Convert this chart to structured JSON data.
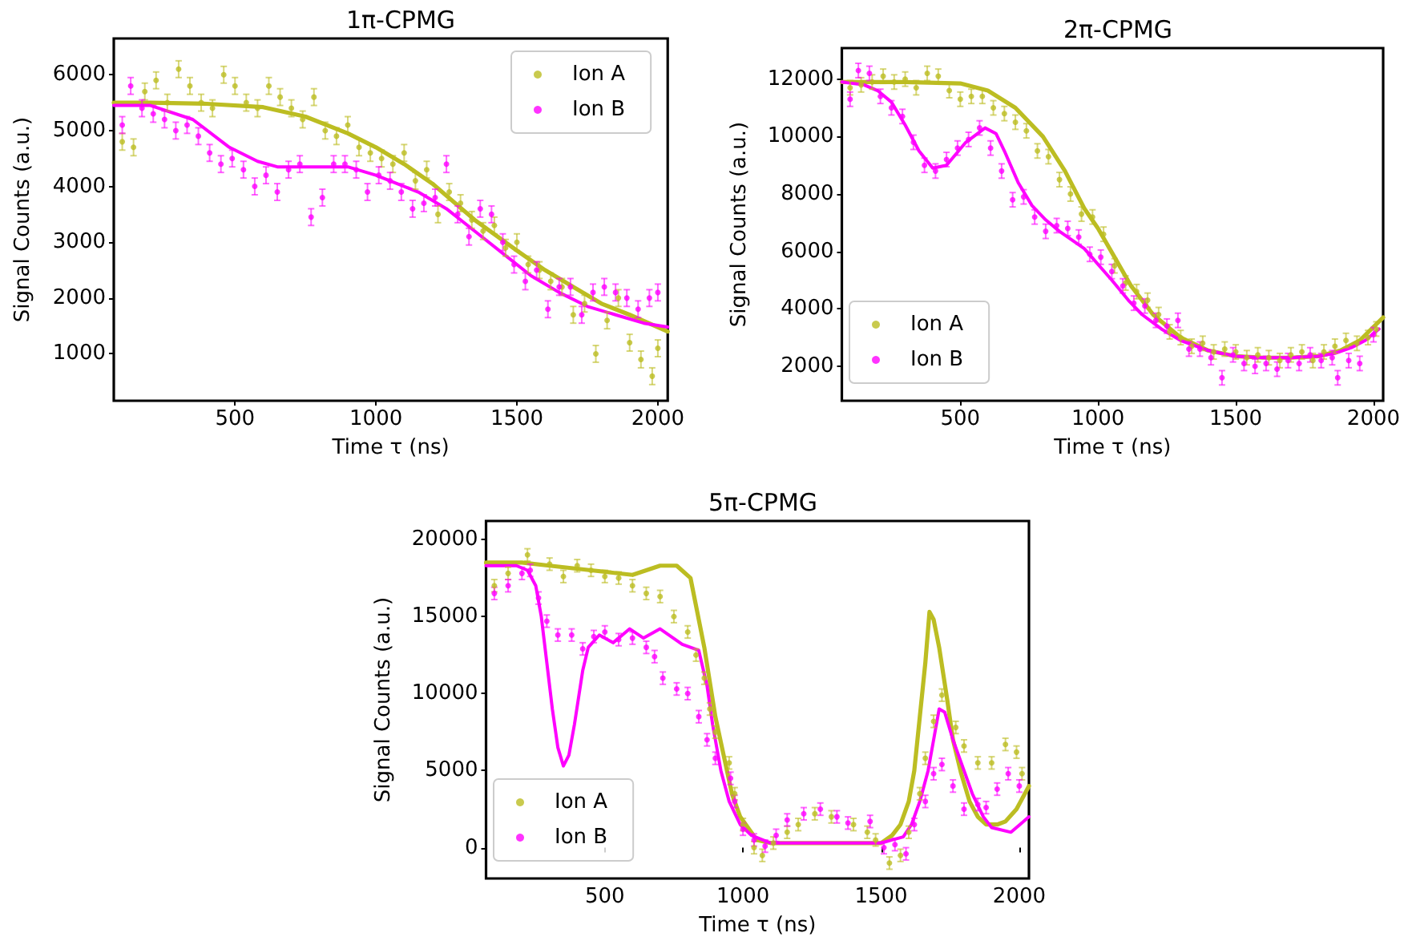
{
  "chart_data": [
    {
      "type": "scatter",
      "title": "1π-CPMG",
      "xlabel": "Time τ (ns)",
      "ylabel": "Signal Counts (a.u.)",
      "xlim": [
        70,
        2035
      ],
      "ylim": [
        160,
        6650
      ],
      "xticks": [
        500,
        1000,
        1500,
        2000
      ],
      "yticks": [
        1000,
        2000,
        3000,
        4000,
        5000,
        6000
      ],
      "grid": false,
      "legend": "top right",
      "series": [
        {
          "name": "Ion A",
          "marker": "circle",
          "color": "#bcbd22",
          "x": [
            100,
            140,
            180,
            220,
            260,
            300,
            340,
            380,
            420,
            460,
            500,
            540,
            580,
            620,
            660,
            700,
            740,
            780,
            820,
            860,
            900,
            940,
            980,
            1020,
            1060,
            1100,
            1140,
            1180,
            1220,
            1260,
            1300,
            1340,
            1380,
            1420,
            1460,
            1500,
            1540,
            1580,
            1620,
            1660,
            1700,
            1740,
            1780,
            1820,
            1860,
            1900,
            1940,
            1980,
            2000
          ],
          "values": [
            4800,
            4700,
            5700,
            5900,
            5500,
            6100,
            5800,
            5500,
            5400,
            6000,
            5800,
            5500,
            5400,
            5800,
            5600,
            5400,
            5200,
            5600,
            5000,
            4900,
            5100,
            4700,
            4600,
            4500,
            4400,
            4600,
            4100,
            4300,
            3500,
            3900,
            3700,
            3400,
            3200,
            3300,
            2900,
            3000,
            2600,
            2500,
            2300,
            2200,
            1700,
            1900,
            1000,
            1600,
            2000,
            1200,
            900,
            600,
            1100
          ],
          "errors": [
            150,
            150,
            150,
            150,
            150,
            150,
            150,
            150,
            150,
            150,
            150,
            150,
            150,
            150,
            150,
            150,
            150,
            150,
            150,
            150,
            150,
            150,
            150,
            150,
            150,
            150,
            150,
            150,
            150,
            150,
            150,
            150,
            150,
            150,
            150,
            150,
            150,
            150,
            150,
            150,
            150,
            150,
            150,
            150,
            150,
            150,
            150,
            150,
            150
          ]
        },
        {
          "name": "Ion B",
          "marker": "circle",
          "color": "#ff00ff",
          "x": [
            100,
            130,
            170,
            210,
            250,
            290,
            330,
            370,
            410,
            450,
            490,
            530,
            570,
            610,
            650,
            690,
            730,
            770,
            810,
            850,
            890,
            930,
            970,
            1010,
            1050,
            1090,
            1130,
            1170,
            1210,
            1250,
            1290,
            1330,
            1370,
            1410,
            1450,
            1490,
            1530,
            1570,
            1610,
            1650,
            1690,
            1730,
            1770,
            1810,
            1850,
            1890,
            1930,
            1970,
            2000
          ],
          "values": [
            5100,
            5800,
            5400,
            5300,
            5200,
            5000,
            5100,
            4900,
            4600,
            4400,
            4500,
            4300,
            4000,
            4200,
            3900,
            4300,
            4400,
            3450,
            3800,
            4400,
            4400,
            4300,
            3900,
            4200,
            4100,
            3900,
            3600,
            3700,
            3800,
            4400,
            3500,
            3100,
            3600,
            3500,
            3000,
            2600,
            2300,
            2500,
            1800,
            2200,
            2200,
            1700,
            2100,
            2200,
            2100,
            2000,
            1800,
            2000,
            2100
          ],
          "errors": [
            150,
            150,
            150,
            150,
            150,
            150,
            150,
            150,
            150,
            150,
            150,
            150,
            150,
            150,
            150,
            150,
            150,
            150,
            150,
            150,
            150,
            150,
            150,
            150,
            150,
            150,
            150,
            150,
            150,
            150,
            150,
            150,
            150,
            150,
            150,
            150,
            150,
            150,
            150,
            150,
            150,
            150,
            150,
            150,
            150,
            150,
            150,
            150,
            150
          ]
        },
        {
          "type": "line",
          "line_style": "solid",
          "color": "#bcbd22",
          "x": [
            70,
            200,
            400,
            600,
            750,
            900,
            1000,
            1100,
            1200,
            1350,
            1500,
            1600,
            1700,
            1800,
            1900,
            2035
          ],
          "values": [
            5500,
            5500,
            5480,
            5420,
            5250,
            4950,
            4700,
            4400,
            4050,
            3400,
            2850,
            2500,
            2200,
            1900,
            1700,
            1400
          ]
        },
        {
          "type": "line",
          "line_style": "solid",
          "color": "#ff00ff",
          "x": [
            70,
            200,
            350,
            480,
            580,
            650,
            800,
            900,
            1000,
            1050,
            1150,
            1250,
            1350,
            1450,
            1550,
            1650,
            1750,
            1850,
            1950,
            2035
          ],
          "values": [
            5450,
            5450,
            5200,
            4700,
            4450,
            4350,
            4350,
            4350,
            4200,
            4100,
            3900,
            3600,
            3200,
            2800,
            2400,
            2100,
            1850,
            1700,
            1550,
            1480
          ]
        }
      ]
    },
    {
      "type": "scatter",
      "title": "2π-CPMG",
      "xlabel": "Time τ (ns)",
      "ylabel": "Signal Counts (a.u.)",
      "xlim": [
        70,
        2035
      ],
      "ylim": [
        800,
        13080
      ],
      "xticks": [
        500,
        1000,
        1500,
        2000
      ],
      "yticks": [
        2000,
        4000,
        6000,
        8000,
        10000,
        12000
      ],
      "grid": false,
      "legend": "bottom left",
      "series": [
        {
          "name": "Ion A",
          "marker": "circle",
          "color": "#bcbd22",
          "x": [
            100,
            140,
            180,
            220,
            260,
            300,
            340,
            380,
            420,
            460,
            500,
            540,
            580,
            620,
            660,
            700,
            740,
            780,
            820,
            860,
            900,
            940,
            980,
            1020,
            1060,
            1100,
            1140,
            1180,
            1220,
            1260,
            1300,
            1340,
            1380,
            1420,
            1460,
            1500,
            1540,
            1580,
            1620,
            1660,
            1700,
            1740,
            1780,
            1820,
            1860,
            1900,
            1940,
            1980,
            2010
          ],
          "values": [
            11700,
            11800,
            11900,
            12100,
            11900,
            12000,
            11700,
            12200,
            12100,
            11600,
            11300,
            11400,
            11400,
            11000,
            10800,
            10500,
            10200,
            9500,
            9300,
            8500,
            8000,
            7300,
            7200,
            6600,
            5500,
            4900,
            4600,
            4300,
            3800,
            3200,
            3000,
            2700,
            2800,
            2500,
            2600,
            2500,
            2300,
            2400,
            2300,
            2200,
            2400,
            2500,
            2200,
            2500,
            2700,
            2900,
            2800,
            3000,
            3300
          ],
          "errors": [
            250,
            250,
            250,
            250,
            250,
            250,
            250,
            250,
            250,
            250,
            250,
            250,
            250,
            250,
            250,
            250,
            250,
            250,
            250,
            250,
            250,
            250,
            250,
            250,
            250,
            250,
            250,
            250,
            250,
            250,
            250,
            250,
            250,
            250,
            250,
            250,
            250,
            250,
            250,
            250,
            250,
            250,
            250,
            250,
            250,
            250,
            250,
            250,
            250
          ]
        },
        {
          "name": "Ion B",
          "marker": "circle",
          "color": "#ff00ff",
          "x": [
            100,
            130,
            170,
            210,
            250,
            290,
            330,
            370,
            410,
            450,
            490,
            530,
            570,
            610,
            650,
            690,
            730,
            770,
            810,
            850,
            890,
            930,
            970,
            1010,
            1050,
            1090,
            1130,
            1170,
            1210,
            1250,
            1290,
            1330,
            1370,
            1410,
            1450,
            1490,
            1530,
            1570,
            1610,
            1650,
            1690,
            1730,
            1770,
            1810,
            1850,
            1870,
            1910,
            1950,
            2000
          ],
          "values": [
            11300,
            12300,
            12200,
            11400,
            11000,
            10700,
            9800,
            9000,
            8800,
            9200,
            9600,
            9900,
            10300,
            9600,
            8800,
            7800,
            7900,
            7200,
            6700,
            6900,
            6800,
            6500,
            5900,
            5800,
            5300,
            4800,
            4200,
            4100,
            3600,
            3400,
            3600,
            2600,
            2600,
            2300,
            1600,
            2400,
            2100,
            2000,
            2100,
            1900,
            2200,
            2100,
            2400,
            2200,
            2300,
            1600,
            2200,
            2100,
            3100
          ],
          "errors": [
            250,
            250,
            250,
            250,
            250,
            250,
            250,
            250,
            250,
            250,
            250,
            250,
            250,
            250,
            250,
            250,
            250,
            250,
            250,
            250,
            250,
            250,
            250,
            250,
            250,
            250,
            250,
            250,
            250,
            250,
            250,
            250,
            250,
            250,
            250,
            250,
            250,
            250,
            250,
            250,
            250,
            250,
            250,
            250,
            250,
            250,
            250,
            250,
            250
          ]
        },
        {
          "type": "line",
          "line_style": "solid",
          "color": "#bcbd22",
          "x": [
            70,
            300,
            500,
            600,
            700,
            800,
            880,
            950,
            1000,
            1060,
            1120,
            1200,
            1300,
            1400,
            1500,
            1600,
            1700,
            1800,
            1880,
            1950,
            2035
          ],
          "values": [
            11900,
            11900,
            11850,
            11600,
            11000,
            10000,
            8800,
            7500,
            6800,
            5800,
            4800,
            3800,
            3000,
            2550,
            2350,
            2300,
            2300,
            2350,
            2550,
            2900,
            3700
          ]
        },
        {
          "type": "line",
          "line_style": "solid",
          "color": "#ff00ff",
          "x": [
            70,
            150,
            200,
            250,
            300,
            350,
            400,
            450,
            520,
            590,
            630,
            660,
            710,
            760,
            810,
            860,
            950,
            1050,
            1110,
            1160,
            1230,
            1300,
            1400,
            1500,
            1600,
            1700,
            1800,
            1860,
            1920,
            1970,
            2020
          ],
          "values": [
            11900,
            11800,
            11600,
            11200,
            10400,
            9500,
            8900,
            9000,
            9800,
            10300,
            10100,
            9500,
            8400,
            7600,
            7100,
            6700,
            6100,
            5000,
            4300,
            3800,
            3300,
            2900,
            2550,
            2350,
            2300,
            2300,
            2350,
            2450,
            2650,
            2900,
            3300
          ]
        }
      ]
    },
    {
      "type": "scatter",
      "title": "5π-CPMG",
      "xlabel": "Time τ (ns)",
      "ylabel": "Signal Counts (a.u.)",
      "xlim": [
        70,
        2035
      ],
      "ylim": [
        -2000,
        21200
      ],
      "xticks": [
        500,
        1000,
        1500,
        2000
      ],
      "yticks": [
        0,
        5000,
        10000,
        15000,
        20000
      ],
      "grid": false,
      "legend": "bottom left",
      "series": [
        {
          "name": "Ion A",
          "marker": "circle",
          "color": "#bcbd22",
          "x": [
            100,
            150,
            220,
            300,
            350,
            400,
            450,
            500,
            550,
            600,
            650,
            700,
            750,
            800,
            830,
            860,
            880,
            900,
            950,
            970,
            1000,
            1040,
            1070,
            1110,
            1160,
            1200,
            1260,
            1320,
            1400,
            1450,
            1480,
            1530,
            1570,
            1600,
            1640,
            1660,
            1690,
            1720,
            1770,
            1800,
            1850,
            1900,
            1950,
            1990,
            2010
          ],
          "values": [
            17000,
            17800,
            19000,
            18400,
            17600,
            18300,
            18000,
            17600,
            17500,
            17000,
            16500,
            16300,
            15000,
            14000,
            12500,
            11000,
            9000,
            7500,
            5500,
            3500,
            1500,
            0,
            -500,
            300,
            1000,
            1500,
            2200,
            2000,
            1500,
            1000,
            500,
            -1000,
            -500,
            1000,
            3500,
            5800,
            8200,
            9900,
            7800,
            6600,
            5500,
            5500,
            6700,
            6200,
            4800
          ],
          "errors": [
            400,
            400,
            400,
            400,
            400,
            400,
            400,
            400,
            400,
            400,
            400,
            400,
            400,
            400,
            400,
            400,
            400,
            400,
            400,
            400,
            400,
            400,
            400,
            400,
            400,
            400,
            400,
            400,
            400,
            400,
            400,
            400,
            400,
            400,
            400,
            400,
            400,
            400,
            400,
            400,
            400,
            400,
            400,
            400,
            400
          ]
        },
        {
          "name": "Ion B",
          "marker": "circle",
          "color": "#ff00ff",
          "x": [
            100,
            150,
            200,
            230,
            260,
            290,
            330,
            380,
            420,
            460,
            500,
            550,
            600,
            650,
            680,
            710,
            760,
            800,
            840,
            870,
            900,
            955,
            970,
            1000,
            1040,
            1080,
            1120,
            1160,
            1220,
            1280,
            1340,
            1380,
            1460,
            1510,
            1550,
            1590,
            1620,
            1660,
            1690,
            1720,
            1760,
            1800,
            1850,
            1880,
            1920,
            1960,
            2000
          ],
          "values": [
            16500,
            17000,
            17800,
            18000,
            16200,
            14700,
            13800,
            13800,
            12900,
            13700,
            14000,
            13500,
            13600,
            13000,
            12400,
            11000,
            10300,
            10000,
            8500,
            7000,
            5800,
            4500,
            3000,
            1200,
            500,
            100,
            800,
            1800,
            2200,
            2500,
            2000,
            1600,
            1700,
            0,
            200,
            -400,
            1500,
            3000,
            4800,
            5400,
            4000,
            2500,
            2800,
            2600,
            3800,
            4800,
            4000
          ],
          "errors": [
            400,
            400,
            400,
            400,
            400,
            400,
            400,
            400,
            400,
            400,
            400,
            400,
            400,
            400,
            400,
            400,
            400,
            400,
            400,
            400,
            400,
            400,
            400,
            400,
            400,
            400,
            400,
            400,
            400,
            400,
            400,
            400,
            400,
            400,
            400,
            400,
            400,
            400,
            400,
            400,
            400,
            400,
            400,
            400,
            400,
            400,
            400
          ]
        },
        {
          "type": "line",
          "line_style": "solid",
          "color": "#bcbd22",
          "x": [
            70,
            200,
            300,
            450,
            600,
            700,
            760,
            810,
            860,
            900,
            930,
            960,
            990,
            1050,
            1100,
            1300,
            1500,
            1540,
            1570,
            1600,
            1620,
            1640,
            1660,
            1675,
            1690,
            1710,
            1740,
            1760,
            1790,
            1820,
            1850,
            1880,
            1920,
            1950,
            1990,
            2035
          ],
          "values": [
            18500,
            18500,
            18300,
            18000,
            17700,
            18300,
            18300,
            17500,
            13000,
            8500,
            6000,
            3500,
            2000,
            500,
            300,
            300,
            300,
            800,
            1500,
            3000,
            5000,
            8500,
            12000,
            15300,
            14800,
            13000,
            9500,
            7000,
            4800,
            3000,
            2000,
            1500,
            1500,
            1700,
            2500,
            4000
          ]
        },
        {
          "type": "line",
          "line_style": "solid",
          "color": "#ff00ff",
          "x": [
            70,
            180,
            220,
            250,
            270,
            290,
            310,
            330,
            350,
            370,
            390,
            420,
            440,
            480,
            530,
            590,
            640,
            700,
            780,
            840,
            870,
            890,
            920,
            950,
            990,
            1030,
            1100,
            1300,
            1500,
            1540,
            1580,
            1610,
            1640,
            1670,
            1690,
            1710,
            1730,
            1760,
            1800,
            1830,
            1870,
            1900,
            1970,
            2035
          ],
          "values": [
            18300,
            18300,
            18000,
            17000,
            15000,
            12000,
            9000,
            6500,
            5300,
            6000,
            8000,
            11500,
            13000,
            13800,
            13300,
            14200,
            13600,
            14200,
            13200,
            12800,
            10500,
            8000,
            5000,
            3000,
            1500,
            800,
            300,
            300,
            300,
            500,
            700,
            1500,
            3000,
            5000,
            7000,
            9000,
            8800,
            7000,
            5000,
            3500,
            2000,
            1300,
            1000,
            2000
          ]
        }
      ]
    }
  ]
}
